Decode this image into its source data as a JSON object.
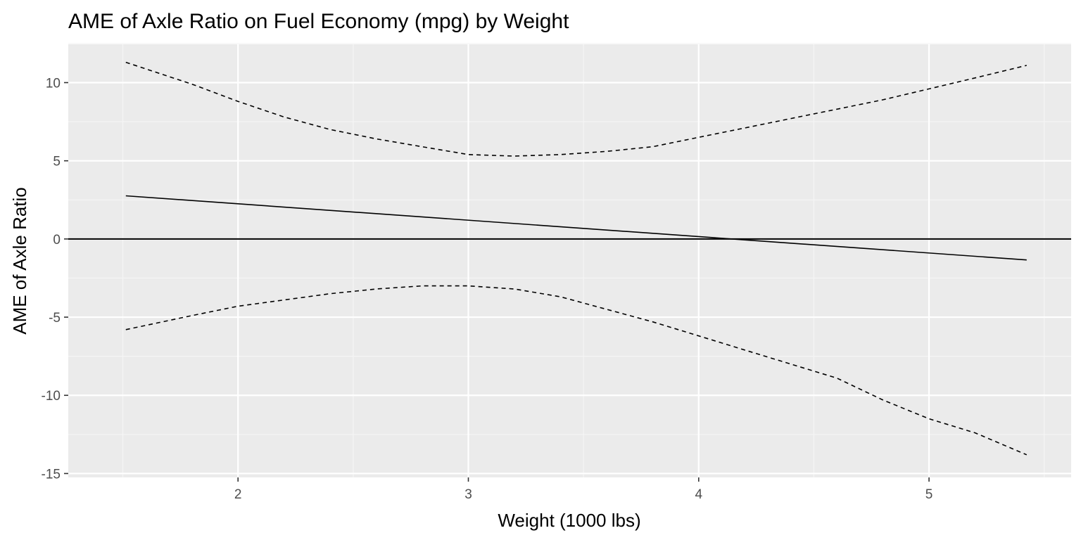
{
  "chart_data": {
    "type": "line",
    "title": "AME of Axle Ratio on Fuel Economy (mpg) by Weight",
    "xlabel": "Weight (1000 lbs)",
    "ylabel": "AME of Axle Ratio",
    "xlim": [
      1.263,
      5.617
    ],
    "ylim": [
      -15.25,
      12.45
    ],
    "x_ticks": [
      "2",
      "3",
      "4",
      "5"
    ],
    "x_tick_values": [
      2,
      3,
      4,
      5
    ],
    "x_minor_ticks": [
      1.5,
      2.5,
      3.5,
      4.5,
      5.5
    ],
    "y_ticks": [
      "10",
      "5",
      "0",
      "-5",
      "-10",
      "-15"
    ],
    "y_tick_values": [
      10,
      5,
      0,
      -5,
      -10,
      -15
    ],
    "y_minor_ticks": [
      12.5,
      7.5,
      2.5,
      -2.5,
      -7.5,
      -12.5
    ],
    "grid": true,
    "reference_line": {
      "y": 0
    },
    "series": [
      {
        "style": "solid",
        "x": [
          1.513,
          5.424
        ],
        "y": [
          2.76,
          -1.34
        ]
      },
      {
        "style": "dashed",
        "x": [
          1.513,
          1.8,
          2.0,
          2.2,
          2.4,
          2.6,
          2.8,
          3.0,
          3.2,
          3.4,
          3.6,
          3.8,
          4.0,
          4.2,
          4.4,
          4.6,
          4.8,
          5.0,
          5.2,
          5.424
        ],
        "y": [
          11.3,
          9.9,
          8.8,
          7.8,
          7.0,
          6.4,
          5.9,
          5.4,
          5.3,
          5.4,
          5.6,
          5.9,
          6.5,
          7.1,
          7.7,
          8.3,
          8.9,
          9.6,
          10.3,
          11.1
        ]
      },
      {
        "style": "dashed",
        "x": [
          1.513,
          1.8,
          2.0,
          2.2,
          2.4,
          2.6,
          2.8,
          3.0,
          3.2,
          3.4,
          3.6,
          3.8,
          4.0,
          4.2,
          4.4,
          4.6,
          4.8,
          5.0,
          5.2,
          5.424
        ],
        "y": [
          -5.8,
          -4.9,
          -4.3,
          -3.9,
          -3.5,
          -3.2,
          -3.0,
          -3.0,
          -3.2,
          -3.7,
          -4.5,
          -5.3,
          -6.2,
          -7.1,
          -8.0,
          -8.9,
          -10.3,
          -11.5,
          -12.4,
          -13.8
        ]
      }
    ],
    "colors": {
      "panel_background": "#ebebeb",
      "grid_major": "#ffffff",
      "grid_minor": "#f5f5f5",
      "line": "#000000",
      "tick_label": "#4d4d4d"
    }
  }
}
